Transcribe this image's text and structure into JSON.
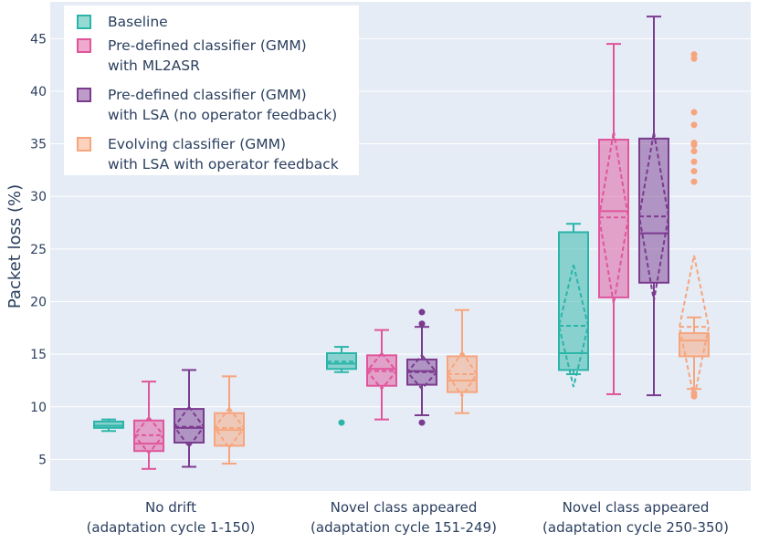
{
  "chart_data": {
    "type": "box",
    "ylabel": "Packet loss (%)",
    "ylim": [
      2,
      48.5
    ],
    "yticks": [
      5,
      10,
      15,
      20,
      25,
      30,
      35,
      40,
      45
    ],
    "grid": true,
    "legend_position": "top-left",
    "categories": [
      [
        "No drift",
        "(adaptation cycle 1-150)"
      ],
      [
        "Novel class appeared",
        "(adaptation cycle 151-249)"
      ],
      [
        "Novel class appeared",
        "(adaptation cycle 250-350)"
      ]
    ],
    "series": [
      {
        "name": [
          "Baseline"
        ],
        "color": "#2bb5a8",
        "boxes": [
          {
            "min": 7.7,
            "q1": 8.0,
            "median": 8.2,
            "q3": 8.6,
            "max": 8.8,
            "mean": 8.2,
            "sd": 0.0,
            "outliers": []
          },
          {
            "min": 13.3,
            "q1": 13.6,
            "median": 14.1,
            "q3": 15.1,
            "max": 15.7,
            "mean": 14.3,
            "sd": 0.0,
            "outliers": [
              8.5
            ]
          },
          {
            "min": 13.1,
            "q1": 13.5,
            "median": 15.1,
            "q3": 26.6,
            "max": 27.4,
            "mean": 17.7,
            "sd": 5.8,
            "outliers": []
          }
        ]
      },
      {
        "name": [
          "Pre-defined classifier (GMM)",
          "with ML2ASR"
        ],
        "color": "#e0559b",
        "boxes": [
          {
            "min": 4.1,
            "q1": 5.8,
            "median": 6.5,
            "q3": 8.7,
            "max": 12.4,
            "mean": 7.3,
            "sd": 1.7,
            "outliers": []
          },
          {
            "min": 8.8,
            "q1": 12.0,
            "median": 13.6,
            "q3": 14.9,
            "max": 17.3,
            "mean": 13.4,
            "sd": 1.7,
            "outliers": []
          },
          {
            "min": 11.2,
            "q1": 20.4,
            "median": 28.6,
            "q3": 35.4,
            "max": 44.5,
            "mean": 28.0,
            "sd": 8.2,
            "outliers": []
          }
        ]
      },
      {
        "name": [
          "Pre-defined classifier (GMM)",
          "with LSA (no operator feedback)"
        ],
        "color": "#7b3b8f",
        "boxes": [
          {
            "min": 4.3,
            "q1": 6.6,
            "median": 8.0,
            "q3": 9.8,
            "max": 13.5,
            "mean": 8.1,
            "sd": 1.9,
            "outliers": []
          },
          {
            "min": 9.2,
            "q1": 12.1,
            "median": 13.4,
            "q3": 14.5,
            "max": 17.6,
            "mean": 13.3,
            "sd": 1.6,
            "outliers": [
              8.5,
              17.9,
              19.0
            ]
          },
          {
            "min": 11.1,
            "q1": 21.8,
            "median": 26.5,
            "q3": 35.5,
            "max": 47.1,
            "mean": 28.1,
            "sd": 8.0,
            "outliers": []
          }
        ]
      },
      {
        "name": [
          "Evolving classifier (GMM)",
          "with LSA with operator feedback"
        ],
        "color": "#f7a57d",
        "boxes": [
          {
            "min": 4.6,
            "q1": 6.3,
            "median": 7.8,
            "q3": 9.4,
            "max": 12.9,
            "mean": 8.0,
            "sd": 1.9,
            "outliers": []
          },
          {
            "min": 9.4,
            "q1": 11.4,
            "median": 12.5,
            "q3": 14.8,
            "max": 19.2,
            "mean": 13.1,
            "sd": 2.1,
            "outliers": []
          },
          {
            "min": 11.7,
            "q1": 14.8,
            "median": 16.3,
            "q3": 17.0,
            "max": 18.5,
            "mean": 17.6,
            "sd": 6.8,
            "outliers": [
              11.0,
              11.3,
              31.4,
              32.4,
              33.3,
              34.3,
              34.9,
              35.1,
              36.8,
              38.0,
              43.1,
              43.5
            ]
          }
        ]
      }
    ]
  }
}
